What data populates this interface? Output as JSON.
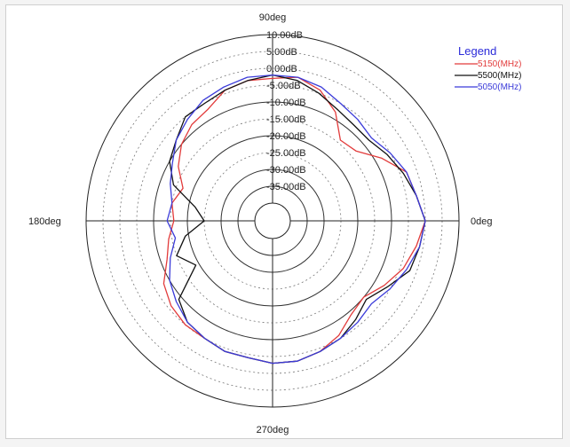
{
  "chart_data": {
    "type": "line",
    "coordinate_system": "polar",
    "radial_unit": "dB",
    "radial_tick_labels": [
      "10.00dB",
      "5.00dB",
      "0.00dB",
      "-5.00dB",
      "-10.00dB",
      "-15.00dB",
      "-20.00dB",
      "-25.00dB",
      "-30.00dB",
      "-35.00dB"
    ],
    "angle_labels": [
      "90deg",
      "180deg",
      "0deg",
      "270deg"
    ],
    "rlim": [
      -40,
      10
    ],
    "theta_direction": "counterclockwise",
    "theta_zero": "right",
    "grid": true,
    "legend": {
      "title": "Legend",
      "position": "top-right",
      "title_color": "#2b2bd9"
    },
    "series": [
      {
        "name": "5150(MHz)",
        "color": "#e23b3b",
        "points": [
          [
            0,
            0
          ],
          [
            10,
            -2
          ],
          [
            20,
            -3
          ],
          [
            30,
            -8
          ],
          [
            40,
            -13
          ],
          [
            50,
            -14
          ],
          [
            60,
            -8
          ],
          [
            70,
            -4
          ],
          [
            80,
            -2
          ],
          [
            90,
            -3
          ],
          [
            100,
            -3
          ],
          [
            110,
            -4
          ],
          [
            120,
            -7
          ],
          [
            130,
            -8
          ],
          [
            140,
            -10
          ],
          [
            150,
            -13
          ],
          [
            160,
            -17
          ],
          [
            170,
            -15
          ],
          [
            180,
            -16
          ],
          [
            190,
            -14
          ],
          [
            200,
            -12
          ],
          [
            210,
            -8
          ],
          [
            220,
            -6
          ],
          [
            230,
            -5
          ],
          [
            240,
            -5
          ],
          [
            250,
            -4
          ],
          [
            260,
            -4
          ],
          [
            270,
            -3
          ],
          [
            280,
            -3
          ],
          [
            290,
            -4
          ],
          [
            300,
            -6
          ],
          [
            310,
            -9
          ],
          [
            320,
            -10
          ],
          [
            330,
            -7
          ],
          [
            340,
            -4
          ],
          [
            350,
            -2
          ],
          [
            360,
            0
          ]
        ]
      },
      {
        "name": "5500(MHz)",
        "color": "#111111",
        "points": [
          [
            0,
            0
          ],
          [
            10,
            -2
          ],
          [
            20,
            -4
          ],
          [
            30,
            -6
          ],
          [
            40,
            -8
          ],
          [
            50,
            -8
          ],
          [
            60,
            -7
          ],
          [
            70,
            -5
          ],
          [
            80,
            -3
          ],
          [
            90,
            -2
          ],
          [
            100,
            -3
          ],
          [
            110,
            -4
          ],
          [
            120,
            -5
          ],
          [
            130,
            -5
          ],
          [
            140,
            -8
          ],
          [
            150,
            -10
          ],
          [
            160,
            -14
          ],
          [
            170,
            -22
          ],
          [
            180,
            -25
          ],
          [
            190,
            -19
          ],
          [
            200,
            -15
          ],
          [
            210,
            -19
          ],
          [
            220,
            -9
          ],
          [
            230,
            -6
          ],
          [
            240,
            -5
          ],
          [
            250,
            -4
          ],
          [
            260,
            -4
          ],
          [
            270,
            -3
          ],
          [
            280,
            -3
          ],
          [
            290,
            -4
          ],
          [
            300,
            -5
          ],
          [
            310,
            -7
          ],
          [
            320,
            -9
          ],
          [
            330,
            -6
          ],
          [
            340,
            -2
          ],
          [
            350,
            -1
          ],
          [
            360,
            0
          ]
        ]
      },
      {
        "name": "5050(MHz)",
        "color": "#3b3bd9",
        "points": [
          [
            0,
            0
          ],
          [
            10,
            -2
          ],
          [
            20,
            -3
          ],
          [
            30,
            -5
          ],
          [
            40,
            -7
          ],
          [
            50,
            -6
          ],
          [
            60,
            -5
          ],
          [
            70,
            -3
          ],
          [
            80,
            -2
          ],
          [
            90,
            -2
          ],
          [
            100,
            -2
          ],
          [
            110,
            -3
          ],
          [
            120,
            -4
          ],
          [
            130,
            -6
          ],
          [
            140,
            -8
          ],
          [
            150,
            -11
          ],
          [
            160,
            -13
          ],
          [
            170,
            -15
          ],
          [
            180,
            -14
          ],
          [
            190,
            -16
          ],
          [
            200,
            -13
          ],
          [
            210,
            -10
          ],
          [
            220,
            -8
          ],
          [
            230,
            -6
          ],
          [
            240,
            -5
          ],
          [
            250,
            -4
          ],
          [
            260,
            -4
          ],
          [
            270,
            -3
          ],
          [
            280,
            -3
          ],
          [
            290,
            -4
          ],
          [
            300,
            -5
          ],
          [
            310,
            -6
          ],
          [
            320,
            -7
          ],
          [
            330,
            -5
          ],
          [
            340,
            -3
          ],
          [
            350,
            -1
          ],
          [
            360,
            0
          ]
        ]
      }
    ]
  }
}
